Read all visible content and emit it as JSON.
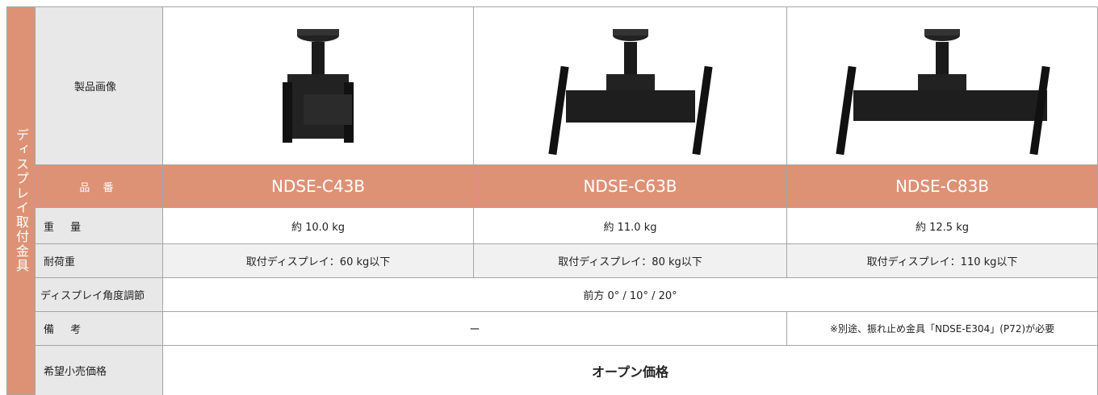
{
  "side_label": "ディスプレイ取付金具",
  "table": {
    "image_row": {
      "label": "製品画像"
    },
    "part_row": {
      "label": "品 番",
      "cells": [
        "NDSE-C43B",
        "NDSE-C63B",
        "NDSE-C83B"
      ]
    },
    "weight_row": {
      "label": "重 量",
      "cells": [
        "約 10.0 kg",
        "約 11.0 kg",
        "約 12.5 kg"
      ]
    },
    "load_row": {
      "label": "耐荷重",
      "cells": [
        "取付ディスプレイ：60 kg以下",
        "取付ディスプレイ：80 kg以下",
        "取付ディスプレイ：110 kg以下"
      ]
    },
    "angle_row": {
      "label": "ディスプレイ角度調節",
      "cells": [
        "前方 0° / 10° / 20°"
      ]
    },
    "notes_row": {
      "label": "備 考",
      "cells": [
        "ー",
        "※別途、振れ止め金具「NDSE-E304」(P72)が必要"
      ]
    },
    "price_row": {
      "label": "希望小売価格",
      "cells": [
        "オープン価格"
      ]
    }
  }
}
